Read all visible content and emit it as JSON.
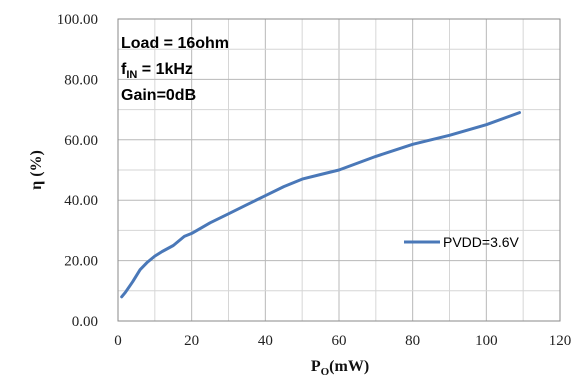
{
  "chart_data": {
    "type": "line",
    "xlabel": {
      "main": "P",
      "sub": "O",
      "unit": "(mW)"
    },
    "ylabel": "η (%)",
    "xlim": [
      0,
      120
    ],
    "ylim": [
      0,
      100
    ],
    "xticks": [
      "0",
      "20",
      "40",
      "60",
      "80",
      "100",
      "120"
    ],
    "yticks": [
      "0.00",
      "20.00",
      "40.00",
      "60.00",
      "80.00",
      "100.00"
    ],
    "grid": true,
    "legend_position": "center-right",
    "annotations": [
      {
        "id": "load",
        "text": "Load = 16ohm"
      },
      {
        "id": "fin",
        "main": "f",
        "sub": "IN",
        "rest": " = 1kHz"
      },
      {
        "id": "gain",
        "text": "Gain=0dB"
      }
    ],
    "series": [
      {
        "name": "PVDD=3.6V",
        "color": "#4a78b8",
        "x": [
          1,
          2,
          4,
          6,
          8,
          10,
          12,
          15,
          18,
          20,
          25,
          30,
          35,
          40,
          45,
          50,
          55,
          60,
          70,
          80,
          90,
          100,
          109
        ],
        "y": [
          8,
          9.5,
          13,
          17,
          19.5,
          21.5,
          23,
          25,
          28,
          29,
          32.5,
          35.5,
          38.5,
          41.5,
          44.5,
          47,
          48.5,
          50,
          54.5,
          58.5,
          61.5,
          65,
          69
        ]
      }
    ]
  }
}
